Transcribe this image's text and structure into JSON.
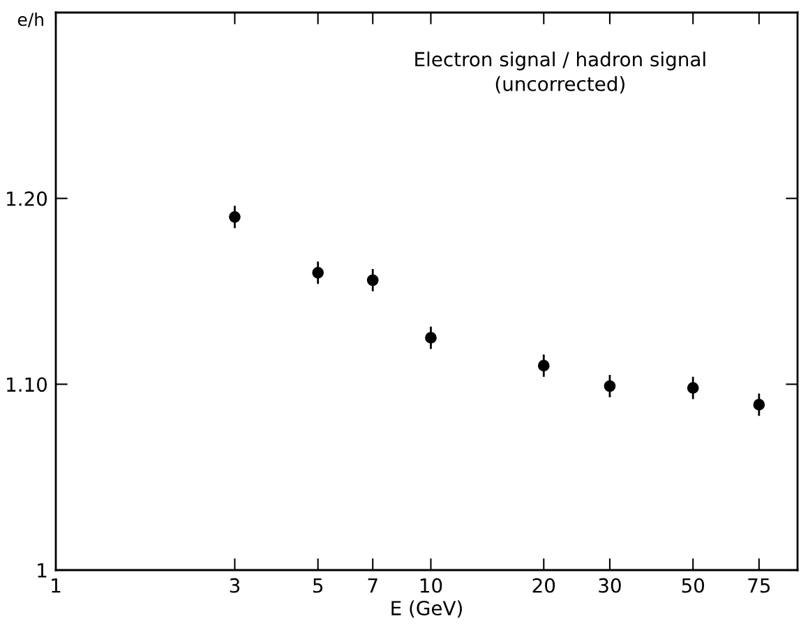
{
  "chart_data": {
    "type": "scatter",
    "title": "Electron signal / hadron signal\n(uncorrected)",
    "xlabel": "E (GeV)",
    "ylabel": "e/h",
    "x": [
      3,
      5,
      7,
      10,
      20,
      30,
      50,
      75
    ],
    "values": [
      1.19,
      1.16,
      1.156,
      1.125,
      1.11,
      1.099,
      1.098,
      1.089
    ],
    "errors": [
      0.006,
      0.006,
      0.006,
      0.006,
      0.006,
      0.006,
      0.006,
      0.006
    ],
    "color": "#000000",
    "marker": "circle",
    "log": "x",
    "grid": false,
    "xlim": [
      1,
      95
    ],
    "xticks": [
      1,
      3,
      5,
      7,
      10,
      20,
      30,
      50,
      75
    ],
    "ylim": [
      1,
      1.3
    ],
    "yticks": [
      1,
      {
        "value": 1.1,
        "label": "1.10"
      },
      {
        "value": 1.2,
        "label": "1.20"
      }
    ]
  }
}
